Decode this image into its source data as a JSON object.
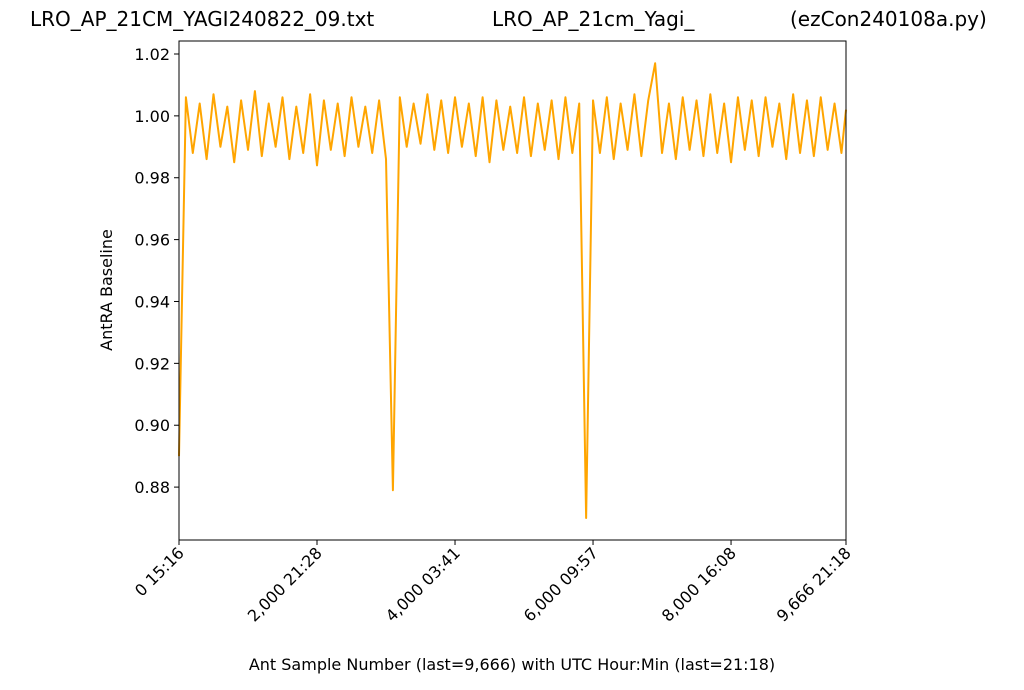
{
  "chart_data": {
    "type": "line",
    "titles": [
      "LRO_AP_21CM_YAGI240822_09.txt",
      "LRO_AP_21cm_Yagi_",
      "(ezCon240108a.py)"
    ],
    "x_label": "Ant Sample Number (last=9,666) with UTC Hour:Min (last=21:18)",
    "y_label": "AntRA Baseline",
    "xlim": [
      0,
      9666
    ],
    "ylim": [
      0.8629,
      1.0242
    ],
    "xticks": [
      {
        "value": 0,
        "label": "0  15:16"
      },
      {
        "value": 2000,
        "label": "2,000  21:28"
      },
      {
        "value": 4000,
        "label": "4,000  03:41"
      },
      {
        "value": 6000,
        "label": "6,000  09:57"
      },
      {
        "value": 8000,
        "label": "8,000  16:08"
      },
      {
        "value": 9666,
        "label": "9,666  21:18"
      }
    ],
    "yticks": [
      0.88,
      {
        "value": 0.9,
        "label": "0.90"
      },
      0.92,
      0.94,
      0.96,
      0.98,
      {
        "value": 1,
        "label": "1.00"
      },
      1.02
    ],
    "grid": false,
    "x": [
      0,
      100,
      200,
      300,
      400,
      500,
      600,
      700,
      800,
      900,
      1000,
      1100,
      1200,
      1300,
      1400,
      1500,
      1600,
      1700,
      1800,
      1900,
      2000,
      2100,
      2200,
      2300,
      2400,
      2500,
      2600,
      2700,
      2800,
      2900,
      3000,
      3100,
      3200,
      3300,
      3400,
      3500,
      3600,
      3700,
      3800,
      3900,
      4000,
      4100,
      4200,
      4300,
      4400,
      4500,
      4600,
      4700,
      4800,
      4900,
      5000,
      5100,
      5200,
      5300,
      5400,
      5500,
      5600,
      5700,
      5800,
      5900,
      6000,
      6100,
      6200,
      6300,
      6400,
      6500,
      6600,
      6700,
      6800,
      6900,
      7000,
      7100,
      7200,
      7300,
      7400,
      7500,
      7600,
      7700,
      7800,
      7900,
      8000,
      8100,
      8200,
      8300,
      8400,
      8500,
      8600,
      8700,
      8800,
      8900,
      9000,
      9100,
      9200,
      9300,
      9400,
      9500,
      9600,
      9666
    ],
    "series": [
      {
        "color": "#ffa500",
        "values": [
          0.89,
          1.006,
          0.988,
          1.004,
          0.986,
          1.007,
          0.99,
          1.003,
          0.985,
          1.005,
          0.989,
          1.008,
          0.987,
          1.004,
          0.99,
          1.006,
          0.986,
          1.003,
          0.988,
          1.007,
          0.984,
          1.005,
          0.989,
          1.004,
          0.987,
          1.006,
          0.99,
          1.003,
          0.988,
          1.005,
          0.986,
          0.879,
          1.006,
          0.99,
          1.004,
          0.991,
          1.007,
          0.989,
          1.005,
          0.988,
          1.006,
          0.99,
          1.004,
          0.987,
          1.006,
          0.985,
          1.005,
          0.989,
          1.003,
          0.988,
          1.006,
          0.987,
          1.004,
          0.989,
          1.005,
          0.986,
          1.006,
          0.988,
          1.004,
          0.87,
          1.005,
          0.988,
          1.006,
          0.986,
          1.004,
          0.989,
          1.007,
          0.987,
          1.005,
          1.017,
          0.988,
          1.004,
          0.986,
          1.006,
          0.989,
          1.005,
          0.987,
          1.007,
          0.988,
          1.004,
          0.985,
          1.006,
          0.989,
          1.005,
          0.987,
          1.006,
          0.99,
          1.004,
          0.986,
          1.007,
          0.988,
          1.005,
          0.987,
          1.006,
          0.989,
          1.004,
          0.988,
          1.002
        ]
      }
    ]
  }
}
